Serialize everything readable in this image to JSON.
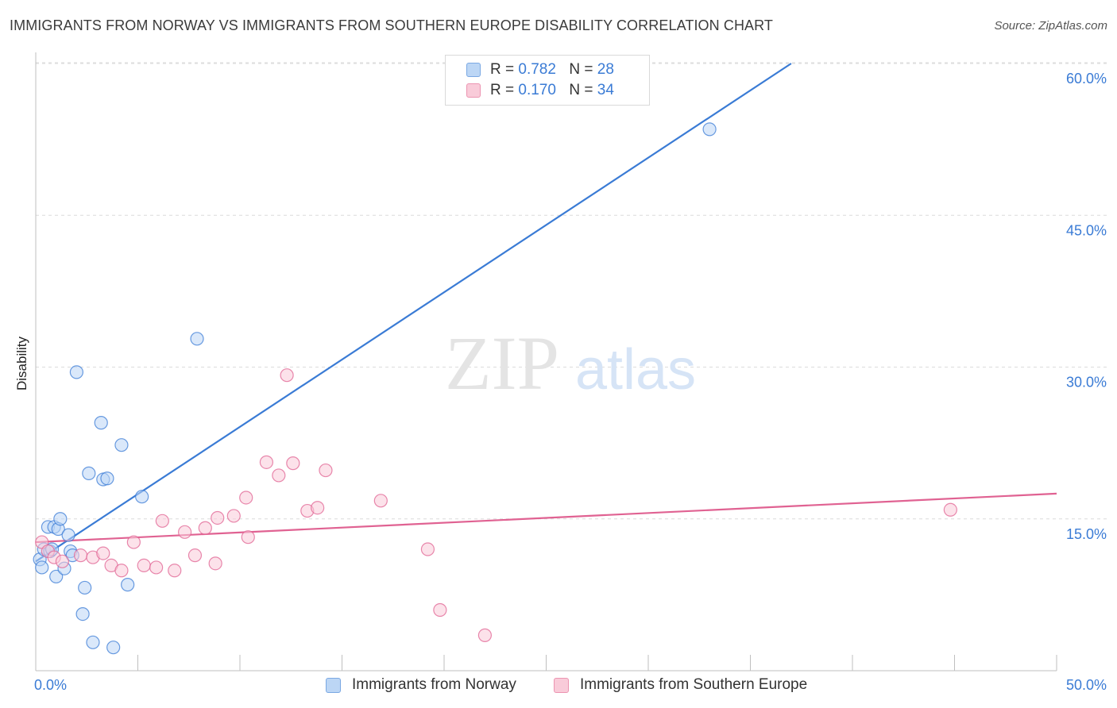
{
  "header": {
    "title": "IMMIGRANTS FROM NORWAY VS IMMIGRANTS FROM SOUTHERN EUROPE DISABILITY CORRELATION CHART",
    "source": "Source: ZipAtlas.com"
  },
  "watermark": {
    "zip": "ZIP",
    "atlas": "atlas"
  },
  "legend": {
    "rows": [
      {
        "r_label": "R =",
        "r_value": "0.782",
        "n_label": "N =",
        "n_value": "28",
        "color": "#a9c9f0"
      },
      {
        "r_label": "R =",
        "r_value": "0.170",
        "n_label": "N =",
        "n_value": "34",
        "color": "#f6b9cc"
      }
    ]
  },
  "chart_data": {
    "type": "scatter",
    "title": "IMMIGRANTS FROM NORWAY VS IMMIGRANTS FROM SOUTHERN EUROPE DISABILITY CORRELATION CHART",
    "xlabel": "",
    "ylabel": "Disability",
    "xlim": [
      0,
      50
    ],
    "ylim": [
      0,
      60
    ],
    "x_tick_labels": [
      "0.0%",
      "50.0%"
    ],
    "y_ticks": [
      15,
      30,
      45,
      60
    ],
    "y_tick_labels": [
      "15.0%",
      "30.0%",
      "45.0%",
      "60.0%"
    ],
    "grid": true,
    "series": [
      {
        "name": "Immigrants from Norway",
        "color": "#3a7bd5",
        "fill": "#bcd6f5",
        "trendline": {
          "x": [
            0,
            37
          ],
          "y": [
            10.8,
            60
          ]
        },
        "points": [
          {
            "x": 0.2,
            "y": 11.0
          },
          {
            "x": 0.3,
            "y": 10.2
          },
          {
            "x": 0.4,
            "y": 12.0
          },
          {
            "x": 0.6,
            "y": 14.2
          },
          {
            "x": 0.7,
            "y": 11.8
          },
          {
            "x": 0.8,
            "y": 12.0
          },
          {
            "x": 0.9,
            "y": 14.2
          },
          {
            "x": 1.0,
            "y": 9.3
          },
          {
            "x": 1.1,
            "y": 14.0
          },
          {
            "x": 1.2,
            "y": 15.0
          },
          {
            "x": 1.4,
            "y": 10.1
          },
          {
            "x": 1.6,
            "y": 13.4
          },
          {
            "x": 1.7,
            "y": 11.8
          },
          {
            "x": 1.8,
            "y": 11.4
          },
          {
            "x": 2.0,
            "y": 29.5
          },
          {
            "x": 2.3,
            "y": 5.6
          },
          {
            "x": 2.4,
            "y": 8.2
          },
          {
            "x": 2.6,
            "y": 19.5
          },
          {
            "x": 2.8,
            "y": 2.8
          },
          {
            "x": 3.2,
            "y": 24.5
          },
          {
            "x": 3.3,
            "y": 18.9
          },
          {
            "x": 3.5,
            "y": 19.0
          },
          {
            "x": 3.8,
            "y": 2.3
          },
          {
            "x": 4.2,
            "y": 22.3
          },
          {
            "x": 4.5,
            "y": 8.5
          },
          {
            "x": 5.2,
            "y": 17.2
          },
          {
            "x": 7.9,
            "y": 32.8
          },
          {
            "x": 33.0,
            "y": 53.5
          }
        ]
      },
      {
        "name": "Immigrants from Southern Europe",
        "color": "#e06292",
        "fill": "#f9cbd9",
        "trendline": {
          "x": [
            0,
            50
          ],
          "y": [
            12.7,
            17.5
          ]
        },
        "points": [
          {
            "x": 0.3,
            "y": 12.7
          },
          {
            "x": 0.6,
            "y": 11.8
          },
          {
            "x": 0.9,
            "y": 11.2
          },
          {
            "x": 1.3,
            "y": 10.8
          },
          {
            "x": 2.2,
            "y": 11.4
          },
          {
            "x": 2.8,
            "y": 11.2
          },
          {
            "x": 3.3,
            "y": 11.6
          },
          {
            "x": 3.7,
            "y": 10.4
          },
          {
            "x": 4.2,
            "y": 9.9
          },
          {
            "x": 4.8,
            "y": 12.7
          },
          {
            "x": 5.3,
            "y": 10.4
          },
          {
            "x": 5.9,
            "y": 10.2
          },
          {
            "x": 6.2,
            "y": 14.8
          },
          {
            "x": 6.8,
            "y": 9.9
          },
          {
            "x": 7.3,
            "y": 13.7
          },
          {
            "x": 7.8,
            "y": 11.4
          },
          {
            "x": 8.3,
            "y": 14.1
          },
          {
            "x": 8.8,
            "y": 10.6
          },
          {
            "x": 8.9,
            "y": 15.1
          },
          {
            "x": 9.7,
            "y": 15.3
          },
          {
            "x": 10.3,
            "y": 17.1
          },
          {
            "x": 10.4,
            "y": 13.2
          },
          {
            "x": 11.3,
            "y": 20.6
          },
          {
            "x": 11.9,
            "y": 19.3
          },
          {
            "x": 12.3,
            "y": 29.2
          },
          {
            "x": 12.6,
            "y": 20.5
          },
          {
            "x": 13.3,
            "y": 15.8
          },
          {
            "x": 13.8,
            "y": 16.1
          },
          {
            "x": 14.2,
            "y": 19.8
          },
          {
            "x": 16.9,
            "y": 16.8
          },
          {
            "x": 19.2,
            "y": 12.0
          },
          {
            "x": 19.8,
            "y": 6.0
          },
          {
            "x": 22.0,
            "y": 3.5
          },
          {
            "x": 44.8,
            "y": 15.9
          }
        ]
      }
    ]
  }
}
